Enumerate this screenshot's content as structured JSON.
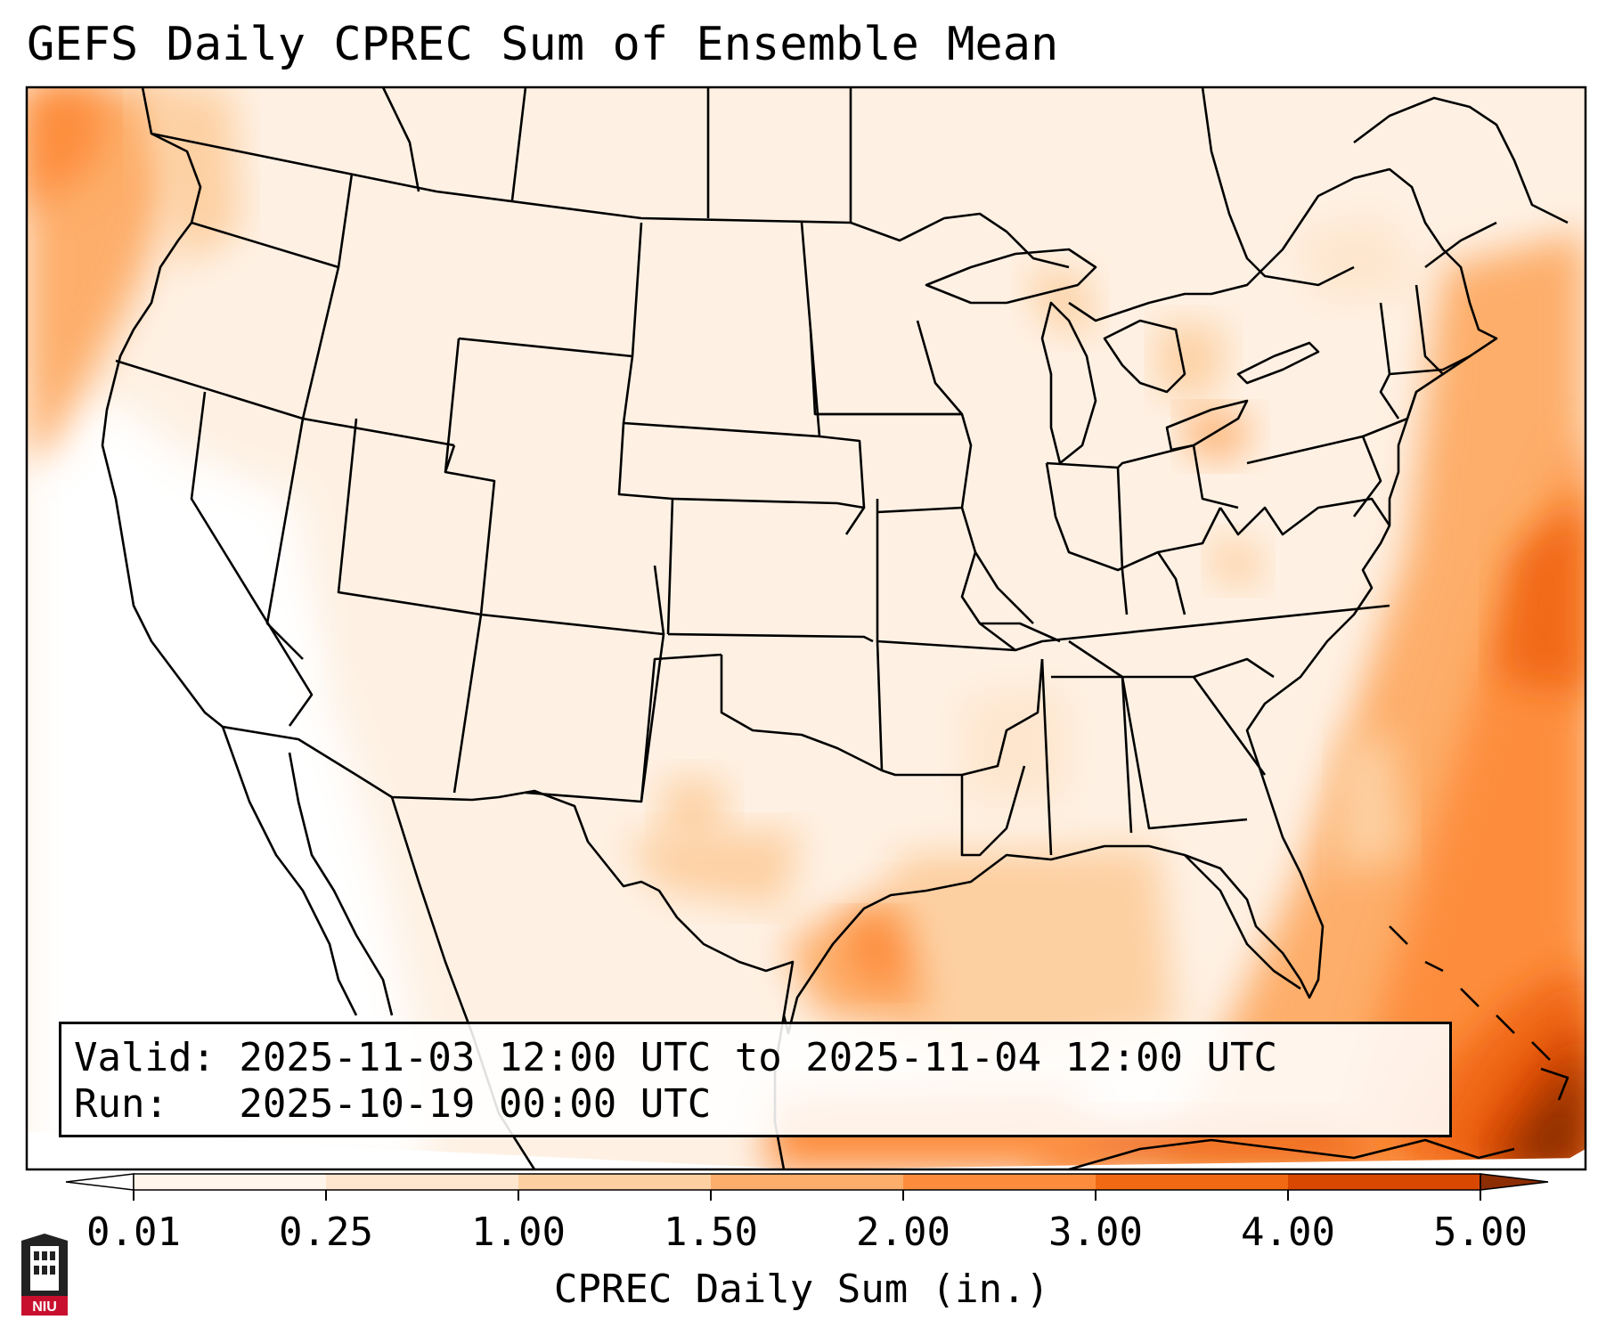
{
  "title": "GEFS Daily CPREC Sum of Ensemble Mean",
  "info": {
    "valid_line": "Valid: 2025-11-03 12:00 UTC to 2025-11-04 12:00 UTC",
    "run_line": "Run:   2025-10-19 00:00 UTC"
  },
  "colorbar": {
    "label": "CPREC Daily Sum (in.)",
    "ticks": [
      "0.01",
      "0.25",
      "1.00",
      "1.50",
      "2.00",
      "3.00",
      "4.00",
      "5.00"
    ],
    "colors": [
      "#fff5eb",
      "#fee6ce",
      "#fdd0a2",
      "#fdae6b",
      "#fd8d3c",
      "#f16913",
      "#d94801",
      "#8c2d04"
    ],
    "extend": "both"
  },
  "logo": {
    "text": "NIU",
    "color": "#c8102e",
    "icon": "university-tower-icon"
  }
}
